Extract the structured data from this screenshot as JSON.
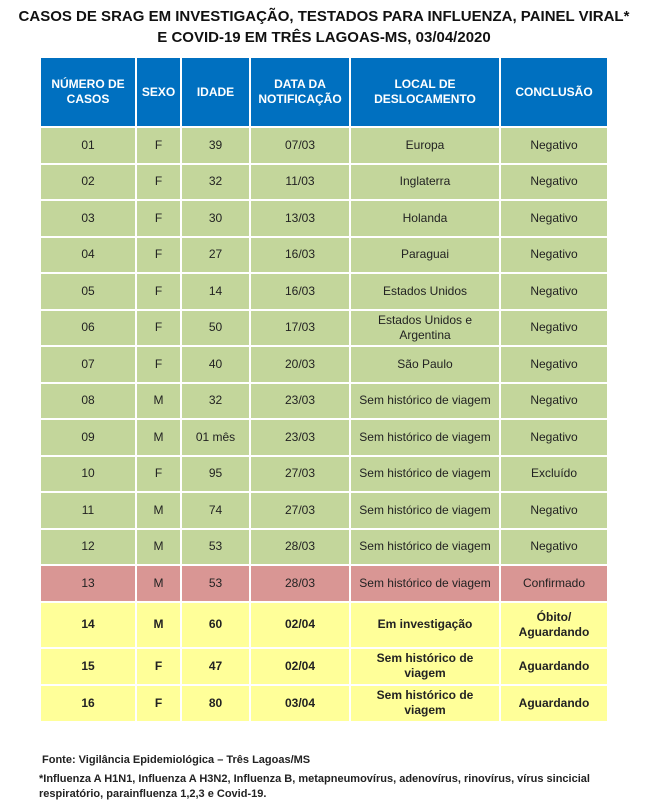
{
  "header": {
    "title_lines": [
      "CASOS DE SRAG EM INVESTIGAÇÃO, TESTADOS PARA INFLUENZA, PAINEL VIRAL*",
      "E COVID-19 EM TRÊS LAGOAS-MS, 03/04/2020"
    ]
  },
  "table": {
    "columns": [
      "NÚMERO DE CASOS",
      "SEXO",
      "IDADE",
      "DATA DA NOTIFICAÇÃO",
      "LOCAL DE DESLOCAMENTO",
      "CONCLUSÃO"
    ],
    "rows": [
      [
        "01",
        "F",
        "39",
        "07/03",
        "Europa",
        "Negativo"
      ],
      [
        "02",
        "F",
        "32",
        "11/03",
        "Inglaterra",
        "Negativo"
      ],
      [
        "03",
        "F",
        "30",
        "13/03",
        "Holanda",
        "Negativo"
      ],
      [
        "04",
        "F",
        "27",
        "16/03",
        "Paraguai",
        "Negativo"
      ],
      [
        "05",
        "F",
        "14",
        "16/03",
        "Estados Unidos",
        "Negativo"
      ],
      [
        "06",
        "F",
        "50",
        "17/03",
        "Estados Unidos e Argentina",
        "Negativo"
      ],
      [
        "07",
        "F",
        "40",
        "20/03",
        "São Paulo",
        "Negativo"
      ],
      [
        "08",
        "M",
        "32",
        "23/03",
        "Sem histórico de viagem",
        "Negativo"
      ],
      [
        "09",
        "M",
        "01 mês",
        "23/03",
        "Sem histórico de viagem",
        "Negativo"
      ],
      [
        "10",
        "F",
        "95",
        "27/03",
        "Sem histórico de viagem",
        "Excluído"
      ],
      [
        "11",
        "M",
        "74",
        "27/03",
        "Sem histórico de viagem",
        "Negativo"
      ],
      [
        "12",
        "M",
        "53",
        "28/03",
        "Sem histórico de viagem",
        "Negativo"
      ],
      [
        "13",
        "M",
        "53",
        "28/03",
        "Sem histórico de viagem",
        "Confirmado"
      ],
      [
        "14",
        "M",
        "60",
        "02/04",
        "Em investigação",
        "Óbito/ Aguardando"
      ],
      [
        "15",
        "F",
        "47",
        "02/04",
        "Sem histórico de viagem",
        "Aguardando"
      ],
      [
        "16",
        "F",
        "80",
        "03/04",
        "Sem histórico de viagem",
        "Aguardando"
      ]
    ]
  },
  "footer": {
    "source": "Fonte: Vigilância Epidemiológica – Três Lagoas/MS",
    "note": "*Influenza A H1N1, Influenza A H3N2, Influenza B, metapneumovírus, adenovírus, rinovírus, vírus sincicial respiratório,  parainfluenza 1,2,3 e Covid-19."
  }
}
